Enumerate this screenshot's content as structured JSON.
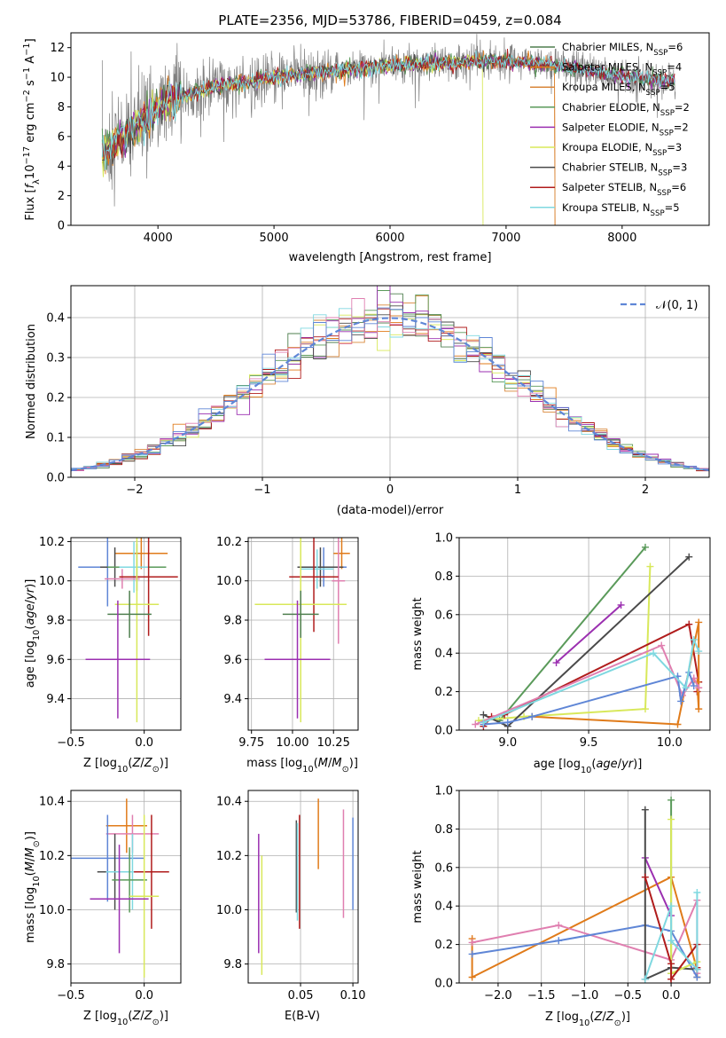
{
  "colors": {
    "Chabrier MILES": "#4f7f4f",
    "Salpeter MILES": "#e07b1a",
    "Kroupa MILES": "#d9873a",
    "Chabrier ELODIE": "#5a9a5a",
    "Salpeter ELODIE": "#9b2fb0",
    "Kroupa ELODIE": "#d8e85a",
    "Chabrier STELIB": "#4a4a4a",
    "Salpeter STELIB": "#b01c1c",
    "Kroupa STELIB": "#7fd8e0",
    "pink": "#e07fb0",
    "blue": "#5f86d6",
    "gray_spectrum": "#808080"
  },
  "chart_data": [
    {
      "type": "line",
      "title": "PLATE=2356, MJD=53786, FIBERID=0459, z=0.084",
      "xlabel": "wavelength [Angstrom, rest frame]",
      "ylabel": "Flux [f_λ10^-17 erg cm^-2 s^-1 A^-1]",
      "xlim": [
        3250,
        8750
      ],
      "ylim": [
        0,
        13
      ],
      "x_ticks": [
        "4000",
        "5000",
        "6000",
        "7000",
        "8000"
      ],
      "y_ticks": [
        "0",
        "2",
        "4",
        "6",
        "8",
        "10",
        "12"
      ],
      "legend_position": "upper right",
      "legend": [
        {
          "label": "Chabrier MILES, N_SSP=6",
          "main": "Chabrier MILES, N",
          "sub": "SSP",
          "tail": "=6",
          "color": "#4f7f4f"
        },
        {
          "label": "Salpeter MILES, N_SSP=4",
          "main": "Salpeter MILES, N",
          "sub": "SSP",
          "tail": "=4",
          "color": "#e07b1a"
        },
        {
          "label": "Kroupa MILES, N_SSP=5",
          "main": "Kroupa MILES, N",
          "sub": "SSP",
          "tail": "=5",
          "color": "#d9873a"
        },
        {
          "label": "Chabrier ELODIE, N_SSP=2",
          "main": "Chabrier ELODIE, N",
          "sub": "SSP",
          "tail": "=2",
          "color": "#5a9a5a"
        },
        {
          "label": "Salpeter ELODIE, N_SSP=2",
          "main": "Salpeter ELODIE, N",
          "sub": "SSP",
          "tail": "=2",
          "color": "#9b2fb0"
        },
        {
          "label": "Kroupa ELODIE, N_SSP=3",
          "main": "Kroupa ELODIE, N",
          "sub": "SSP",
          "tail": "=3",
          "color": "#d8e85a"
        },
        {
          "label": "Chabrier STELIB, N_SSP=3",
          "main": "Chabrier STELIB, N",
          "sub": "SSP",
          "tail": "=3",
          "color": "#4a4a4a"
        },
        {
          "label": "Salpeter STELIB, N_SSP=6",
          "main": "Salpeter STELIB, N",
          "sub": "SSP",
          "tail": "=6",
          "color": "#b01c1c"
        },
        {
          "label": "Kroupa STELIB, N_SSP=5",
          "main": "Kroupa STELIB, N",
          "sub": "SSP",
          "tail": "=5",
          "color": "#7fd8e0"
        }
      ],
      "spectrum_trend": {
        "x": [
          3500,
          3700,
          3900,
          4100,
          4500,
          5000,
          5500,
          6000,
          6500,
          7000,
          7500,
          8000,
          8400
        ],
        "y": [
          4.8,
          6.0,
          7.3,
          8.5,
          9.4,
          10.0,
          10.4,
          10.8,
          11.0,
          11.1,
          10.7,
          10.1,
          9.7
        ]
      }
    },
    {
      "type": "step",
      "xlabel": "(data-model)/error",
      "ylabel": "Normed distribution",
      "xlim": [
        -2.5,
        2.5
      ],
      "ylim": [
        0,
        0.48
      ],
      "x_ticks": [
        "−2",
        "−1",
        "0",
        "1",
        "2"
      ],
      "y_ticks": [
        "0.0",
        "0.1",
        "0.2",
        "0.3",
        "0.4"
      ],
      "reference_curve": {
        "label": "𝒩(0, 1)",
        "mean": 0,
        "sigma": 1,
        "color": "#5f86d6",
        "style": "dashed"
      },
      "bin_width": 0.1,
      "legend_position": "upper right"
    },
    {
      "type": "errorbar",
      "xlabel": "Z [log10(Z/Z☉)]",
      "ylabel": "age  [log10(age/yr)]",
      "xlim": [
        -0.5,
        0.25
      ],
      "ylim": [
        9.24,
        10.22
      ],
      "x_ticks": [
        "−0.5",
        "0.0"
      ],
      "y_ticks": [
        "9.4",
        "9.6",
        "9.8",
        "10.0",
        "10.2"
      ],
      "points": [
        {
          "color": "#e07b1a",
          "x": -0.02,
          "xerr": 0.18,
          "y": 10.14,
          "yerr": 0.08
        },
        {
          "color": "#5f86d6",
          "x": -0.25,
          "xerr": 0.2,
          "y": 10.07,
          "yerr": 0.2
        },
        {
          "color": "#4a4a4a",
          "x": -0.2,
          "xerr": 0.1,
          "y": 10.07,
          "yerr": 0.1
        },
        {
          "color": "#5a9a5a",
          "x": -0.05,
          "xerr": 0.2,
          "y": 10.07,
          "yerr": 0.12
        },
        {
          "color": "#7fd8e0",
          "x": -0.07,
          "xerr": 0.1,
          "y": 10.07,
          "yerr": 0.13
        },
        {
          "color": "#e07fb0",
          "x": -0.15,
          "xerr": 0.12,
          "y": 10.01,
          "yerr": 0.05
        },
        {
          "color": "#b01c1c",
          "x": 0.03,
          "xerr": 0.2,
          "y": 10.02,
          "yerr": 0.3
        },
        {
          "color": "#d8e85a",
          "x": -0.05,
          "xerr": 0.15,
          "y": 9.88,
          "yerr": 0.6
        },
        {
          "color": "#4f7f4f",
          "x": -0.1,
          "xerr": 0.15,
          "y": 9.83,
          "yerr": 0.12
        },
        {
          "color": "#9b2fb0",
          "x": -0.18,
          "xerr": 0.22,
          "y": 9.6,
          "yerr": 0.3
        }
      ]
    },
    {
      "type": "errorbar",
      "xlabel": "mass [log10(M/M☉)]",
      "ylabel": "",
      "xlim": [
        9.73,
        10.4
      ],
      "ylim": [
        9.24,
        10.22
      ],
      "x_ticks": [
        "9.75",
        "10.00",
        "10.25"
      ],
      "y_ticks": [
        "9.4",
        "9.6",
        "9.8",
        "10.0",
        "10.2"
      ],
      "points": [
        {
          "color": "#e07b1a",
          "x": 10.3,
          "xerr": 0.05,
          "y": 10.14,
          "yerr": 0.08
        },
        {
          "color": "#5f86d6",
          "x": 10.19,
          "xerr": 0.14,
          "y": 10.07,
          "yerr": 0.1
        },
        {
          "color": "#4a4a4a",
          "x": 10.17,
          "xerr": 0.14,
          "y": 10.07,
          "yerr": 0.1
        },
        {
          "color": "#7fd8e0",
          "x": 10.15,
          "xerr": 0.1,
          "y": 10.06,
          "yerr": 0.1
        },
        {
          "color": "#e07fb0",
          "x": 10.28,
          "xerr": 0.04,
          "y": 10.0,
          "yerr": 0.32
        },
        {
          "color": "#b01c1c",
          "x": 10.13,
          "xerr": 0.15,
          "y": 10.02,
          "yerr": 0.28
        },
        {
          "color": "#d8e85a",
          "x": 10.05,
          "xerr": 0.28,
          "y": 9.88,
          "yerr": 0.6
        },
        {
          "color": "#4f7f4f",
          "x": 10.05,
          "xerr": 0.11,
          "y": 9.83,
          "yerr": 0.12
        },
        {
          "color": "#9b2fb0",
          "x": 10.03,
          "xerr": 0.2,
          "y": 9.6,
          "yerr": 0.3
        }
      ]
    },
    {
      "type": "line",
      "xlabel": "age  [log10(age/yr)]",
      "ylabel": "mass weight",
      "xlim": [
        8.7,
        10.25
      ],
      "ylim": [
        0,
        1.0
      ],
      "x_ticks": [
        "9.0",
        "9.5",
        "10.0"
      ],
      "y_ticks": [
        "0.0",
        "0.2",
        "0.4",
        "0.6",
        "0.8",
        "1.0"
      ],
      "series": [
        {
          "color": "#5a9a5a",
          "x": [
            8.95,
            9.85
          ],
          "y": [
            0.05,
            0.95
          ]
        },
        {
          "color": "#9b2fb0",
          "x": [
            9.3,
            9.7
          ],
          "y": [
            0.35,
            0.65
          ]
        },
        {
          "color": "#d8e85a",
          "x": [
            8.82,
            9.1,
            9.85,
            9.88
          ],
          "y": [
            0.05,
            0.07,
            0.11,
            0.85
          ]
        },
        {
          "color": "#4a4a4a",
          "x": [
            8.85,
            9.0,
            10.12
          ],
          "y": [
            0.08,
            0.02,
            0.9
          ]
        },
        {
          "color": "#b01c1c",
          "x": [
            8.85,
            8.9,
            8.98,
            10.12,
            10.18,
            10.17
          ],
          "y": [
            0.02,
            0.07,
            0.08,
            0.55,
            0.25,
            0.2
          ]
        },
        {
          "color": "#e07b1a",
          "x": [
            9.15,
            10.05,
            10.18,
            10.18,
            10.17
          ],
          "y": [
            0.07,
            0.03,
            0.56,
            0.11,
            0.25
          ]
        },
        {
          "color": "#e07fb0",
          "x": [
            8.8,
            9.95,
            10.08,
            10.15,
            10.18
          ],
          "y": [
            0.03,
            0.44,
            0.18,
            0.27,
            0.22
          ]
        },
        {
          "color": "#5f86d6",
          "x": [
            8.85,
            9.0,
            9.15,
            10.05,
            10.07,
            10.12,
            10.15
          ],
          "y": [
            0.03,
            0.04,
            0.07,
            0.28,
            0.15,
            0.3,
            0.23
          ]
        },
        {
          "color": "#7fd8e0",
          "x": [
            8.85,
            9.9,
            10.1,
            10.15,
            10.18
          ],
          "y": [
            0.04,
            0.4,
            0.22,
            0.47,
            0.41
          ]
        }
      ]
    },
    {
      "type": "errorbar",
      "xlabel": "Z [log10(Z/Z☉)]",
      "ylabel": "mass [log10(M/M☉)]",
      "xlim": [
        -0.5,
        0.25
      ],
      "ylim": [
        9.73,
        10.44
      ],
      "x_ticks": [
        "−0.5",
        "0.0"
      ],
      "y_ticks": [
        "9.8",
        "10.0",
        "10.2",
        "10.4"
      ],
      "points": [
        {
          "color": "#e07b1a",
          "x": -0.12,
          "xerr": 0.14,
          "y": 10.31,
          "yerr": 0.1
        },
        {
          "color": "#e07fb0",
          "x": -0.08,
          "xerr": 0.18,
          "y": 10.28,
          "yerr": 0.07
        },
        {
          "color": "#5f86d6",
          "x": -0.25,
          "xerr": 0.25,
          "y": 10.19,
          "yerr": 0.16
        },
        {
          "color": "#4a4a4a",
          "x": -0.2,
          "xerr": 0.12,
          "y": 10.14,
          "yerr": 0.14
        },
        {
          "color": "#7fd8e0",
          "x": -0.08,
          "xerr": 0.18,
          "y": 10.14,
          "yerr": 0.14
        },
        {
          "color": "#b01c1c",
          "x": 0.05,
          "xerr": 0.12,
          "y": 10.14,
          "yerr": 0.21
        },
        {
          "color": "#5a9a5a",
          "x": -0.1,
          "xerr": 0.12,
          "y": 10.11,
          "yerr": 0.12
        },
        {
          "color": "#d8e85a",
          "x": 0.0,
          "xerr": 0.1,
          "y": 10.05,
          "yerr": 0.3
        },
        {
          "color": "#9b2fb0",
          "x": -0.17,
          "xerr": 0.2,
          "y": 10.04,
          "yerr": 0.2
        }
      ]
    },
    {
      "type": "errorbar",
      "xlabel": "E(B-V)",
      "ylabel": "",
      "xlim": [
        0.0,
        0.105
      ],
      "ylim": [
        9.73,
        10.44
      ],
      "x_ticks": [
        "0.05",
        "0.10"
      ],
      "y_ticks": [
        "9.8",
        "10.0",
        "10.2",
        "10.4"
      ],
      "points": [
        {
          "color": "#9b2fb0",
          "x": 0.01,
          "y": 10.06,
          "yerr": 0.22
        },
        {
          "color": "#d8e85a",
          "x": 0.013,
          "y": 9.98,
          "yerr": 0.22
        },
        {
          "color": "#4a4a4a",
          "x": 0.046,
          "y": 10.16,
          "yerr": 0.17
        },
        {
          "color": "#7fd8e0",
          "x": 0.047,
          "y": 10.14,
          "yerr": 0.18
        },
        {
          "color": "#b01c1c",
          "x": 0.049,
          "y": 10.14,
          "yerr": 0.21
        },
        {
          "color": "#e07b1a",
          "x": 0.067,
          "y": 10.28,
          "yerr": 0.13
        },
        {
          "color": "#e07fb0",
          "x": 0.091,
          "y": 10.17,
          "yerr": 0.2
        },
        {
          "color": "#5f86d6",
          "x": 0.1,
          "y": 10.17,
          "yerr": 0.17
        }
      ]
    },
    {
      "type": "line",
      "xlabel": "Z [log10(Z/Z☉)]",
      "ylabel": "mass weight",
      "xlim": [
        -2.45,
        0.45
      ],
      "ylim": [
        0,
        1.0
      ],
      "x_ticks": [
        "−2.0",
        "−1.5",
        "−1.0",
        "−0.5",
        "0.0"
      ],
      "y_ticks": [
        "0.0",
        "0.2",
        "0.4",
        "0.6",
        "0.8",
        "1.0"
      ],
      "series": [
        {
          "color": "#e07b1a",
          "x": [
            -2.3,
            -2.3,
            0.0,
            0.3,
            0.3
          ],
          "y": [
            0.23,
            0.03,
            0.55,
            0.07,
            0.03
          ]
        },
        {
          "color": "#e07fb0",
          "x": [
            -2.3,
            -1.3,
            0.0,
            0.3,
            0.3
          ],
          "y": [
            0.21,
            0.3,
            0.12,
            0.43,
            0.05
          ]
        },
        {
          "color": "#5f86d6",
          "x": [
            -2.3,
            -1.3,
            -0.3,
            0.0,
            0.3
          ],
          "y": [
            0.15,
            0.22,
            0.3,
            0.27,
            0.03
          ]
        },
        {
          "color": "#9b2fb0",
          "x": [
            -0.3,
            0.0
          ],
          "y": [
            0.65,
            0.35
          ]
        },
        {
          "color": "#4a4a4a",
          "x": [
            -0.3,
            -0.3,
            0.0,
            0.3
          ],
          "y": [
            0.9,
            0.02,
            0.08,
            0.07
          ]
        },
        {
          "color": "#5a9a5a",
          "x": [
            0.0,
            0.0
          ],
          "y": [
            0.95,
            0.05
          ]
        },
        {
          "color": "#d8e85a",
          "x": [
            0.0,
            0.0,
            0.3
          ],
          "y": [
            0.85,
            0.05,
            0.11
          ]
        },
        {
          "color": "#b01c1c",
          "x": [
            -0.3,
            0.0,
            0.0,
            0.3,
            0.3
          ],
          "y": [
            0.55,
            0.1,
            0.02,
            0.2,
            0.08
          ]
        },
        {
          "color": "#7fd8e0",
          "x": [
            -0.3,
            0.0,
            0.0,
            0.3,
            0.3
          ],
          "y": [
            0.02,
            0.4,
            0.22,
            0.07,
            0.47
          ]
        }
      ]
    }
  ]
}
